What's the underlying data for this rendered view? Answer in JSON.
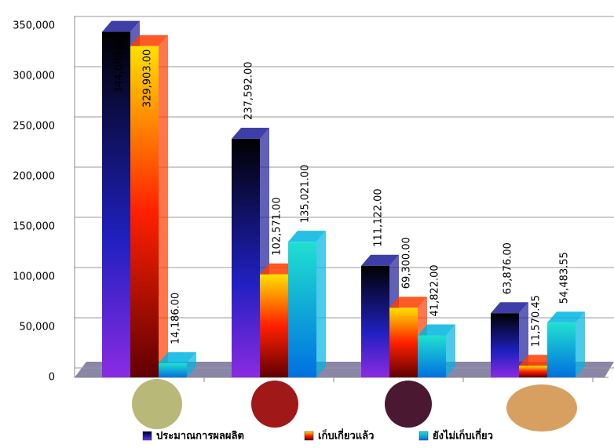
{
  "chart_data": {
    "type": "bar3d",
    "categories": [
      null,
      null,
      null,
      null
    ],
    "series": [
      {
        "name": "ประมาณการผลผลิต",
        "color": "#1c1c9a",
        "values": [
          344089,
          237592,
          111122,
          63876
        ],
        "value_labels": [
          "344,089.00",
          "237,592.00",
          "111,122.00",
          "63,876.00"
        ]
      },
      {
        "name": "เก็บเกี่ยวแล้ว",
        "color": "#ff3c00",
        "values": [
          329903,
          102571,
          69300,
          11570.45
        ],
        "value_labels": [
          "329,903.00",
          "102,571.00",
          "69,300.00",
          "11,570.45"
        ]
      },
      {
        "name": "ยังไม่เก็บเกี่ยว",
        "color": "#00b4e0",
        "values": [
          14186,
          135021,
          41822,
          54483.55
        ],
        "value_labels": [
          "14,186.00",
          "135,021.00",
          "41,822.00",
          "54,483.55"
        ]
      }
    ],
    "ylim": [
      0,
      350000
    ],
    "yticks": [
      0,
      {
        "value": 50000,
        "label": "50,000"
      },
      {
        "value": 100000,
        "label": "100,000"
      },
      {
        "value": 150000,
        "label": "150,000"
      },
      {
        "value": 200000,
        "label": "200,000"
      },
      {
        "value": 250000,
        "label": "250,000"
      },
      {
        "value": 300000,
        "label": "300,000"
      },
      {
        "value": 350000,
        "label": "350,000"
      }
    ],
    "grid": true
  }
}
